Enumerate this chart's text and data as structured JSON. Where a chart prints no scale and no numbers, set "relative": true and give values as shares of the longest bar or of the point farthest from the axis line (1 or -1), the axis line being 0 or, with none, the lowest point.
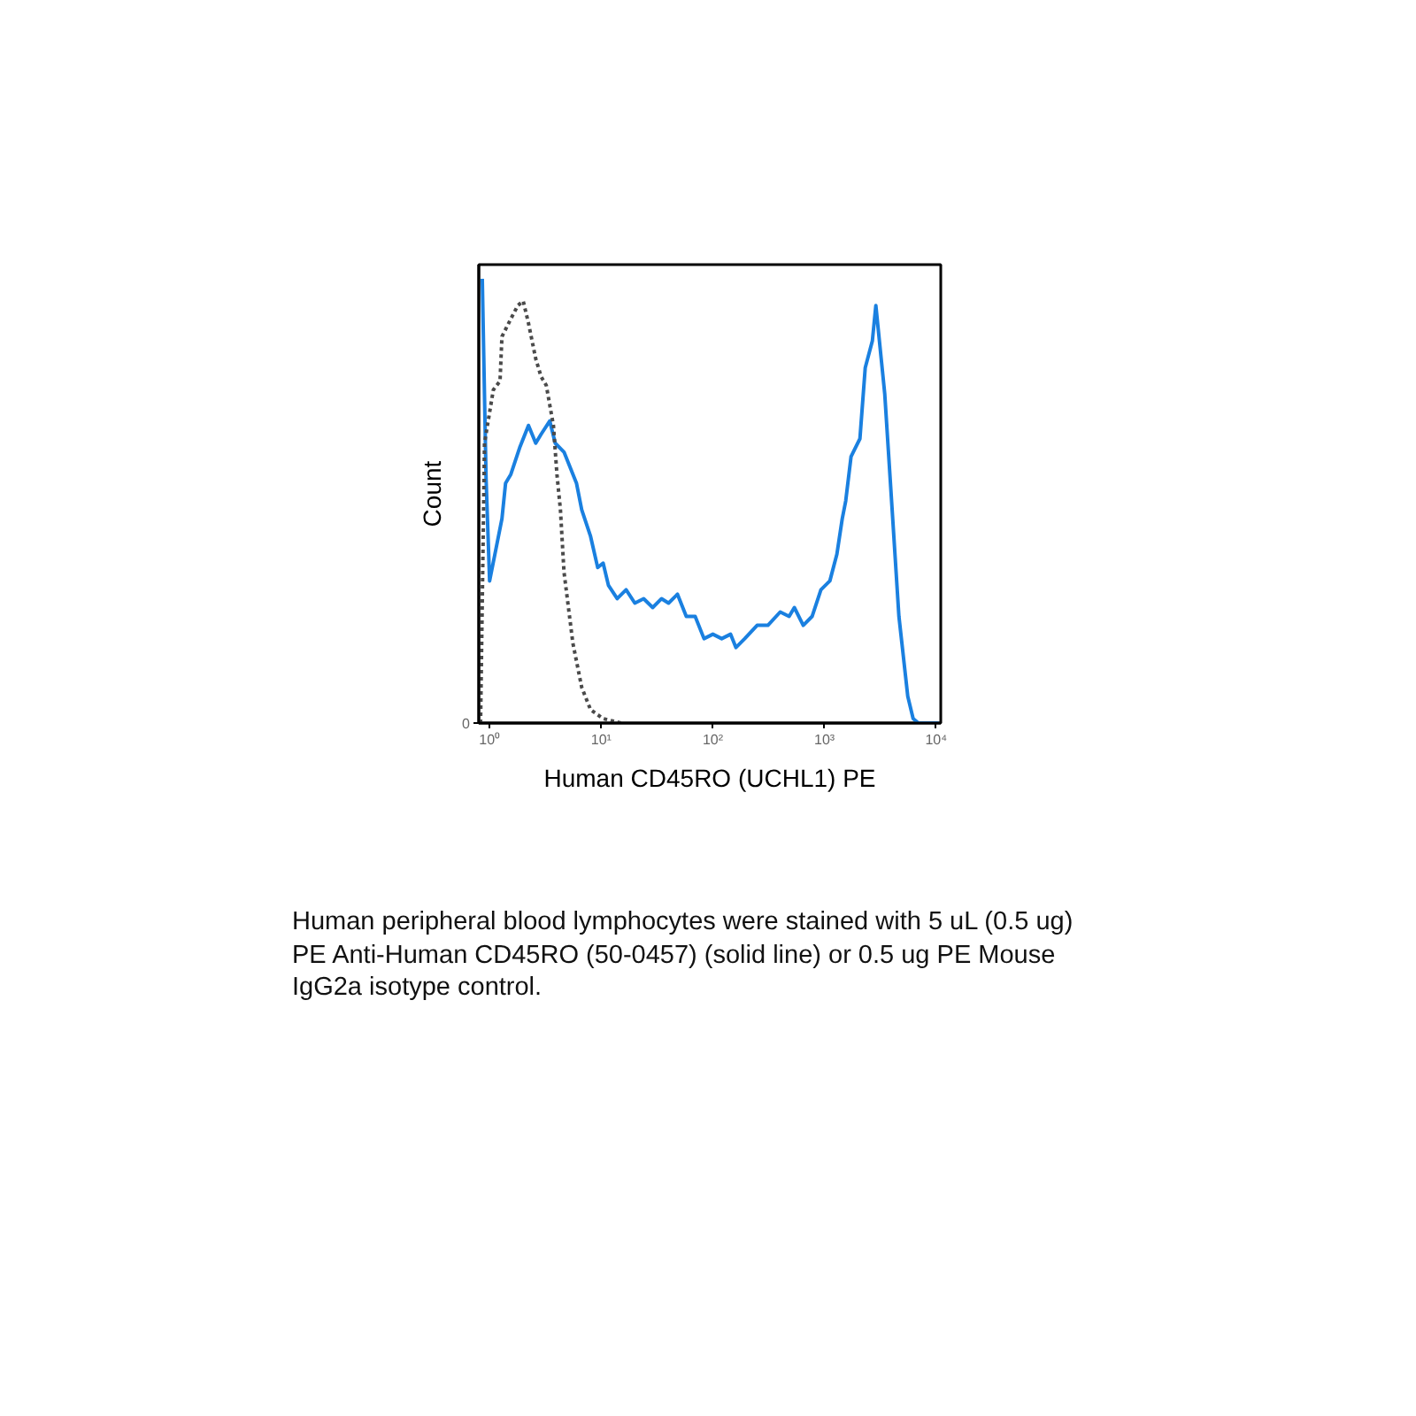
{
  "chart_data": {
    "type": "line",
    "relative": true,
    "log": "x",
    "xlabel": "Human CD45RO (UCHL1) PE",
    "ylabel": "Count",
    "xlim": [
      0.8,
      11000
    ],
    "xticks": [
      {
        "value": 1,
        "label": "10⁰"
      },
      {
        "value": 10,
        "label": "10¹"
      },
      {
        "value": 100,
        "label": "10²"
      },
      {
        "value": 1000,
        "label": "10³"
      },
      {
        "value": 10000,
        "label": "10⁴"
      }
    ],
    "series": [
      {
        "color": "#1a80e0",
        "line_style": "solid",
        "x": [
          0.86,
          0.93,
          1.0,
          1.29,
          1.39,
          1.55,
          1.86,
          2.23,
          2.59,
          2.89,
          3.46,
          3.87,
          4.64,
          6.0,
          6.69,
          8.03,
          9.3,
          10.4,
          11.6,
          13.9,
          16.7,
          20,
          24,
          28.9,
          34.7,
          40.1,
          48.2,
          57.8,
          69.4,
          83.3,
          100,
          120,
          144,
          161,
          193,
          249,
          311,
          401,
          482,
          537,
          645,
          774,
          929,
          1117,
          1291,
          1442,
          1549,
          1730,
          2076,
          2317,
          2683,
          2884,
          3221,
          3467,
          4013,
          4642,
          5572,
          6223,
          6937,
          8958,
          10500
        ],
        "values": [
          1.0,
          0.55,
          0.32,
          0.46,
          0.54,
          0.56,
          0.62,
          0.67,
          0.63,
          0.65,
          0.68,
          0.63,
          0.61,
          0.54,
          0.48,
          0.42,
          0.35,
          0.36,
          0.31,
          0.28,
          0.3,
          0.27,
          0.28,
          0.26,
          0.28,
          0.27,
          0.29,
          0.24,
          0.24,
          0.19,
          0.2,
          0.19,
          0.2,
          0.17,
          0.19,
          0.22,
          0.22,
          0.25,
          0.24,
          0.26,
          0.22,
          0.24,
          0.3,
          0.32,
          0.38,
          0.46,
          0.5,
          0.6,
          0.64,
          0.8,
          0.86,
          0.94,
          0.82,
          0.74,
          0.49,
          0.24,
          0.06,
          0.01,
          0,
          0,
          0
        ]
      },
      {
        "color": "#4a4a4a",
        "line_style": "dotted",
        "x": [
          0.83,
          0.9,
          1.08,
          1.24,
          1.29,
          1.55,
          1.79,
          2.0,
          2.23,
          2.59,
          2.89,
          3.22,
          3.73,
          4.01,
          4.31,
          4.64,
          5.57,
          6.69,
          8.03,
          10.4,
          15.0
        ],
        "values": [
          0,
          0.63,
          0.75,
          0.77,
          0.87,
          0.91,
          0.94,
          0.95,
          0.9,
          0.82,
          0.78,
          0.76,
          0.67,
          0.56,
          0.48,
          0.34,
          0.18,
          0.08,
          0.03,
          0.01,
          0
        ]
      }
    ],
    "annotations": [
      "0",
      "Human peripheral blood lymphocytes were stained with 5 uL (0.5 ug) PE Anti-Human CD45RO (50-0457) (solid line) or 0.5 ug PE Mouse IgG2a isotype control."
    ]
  }
}
